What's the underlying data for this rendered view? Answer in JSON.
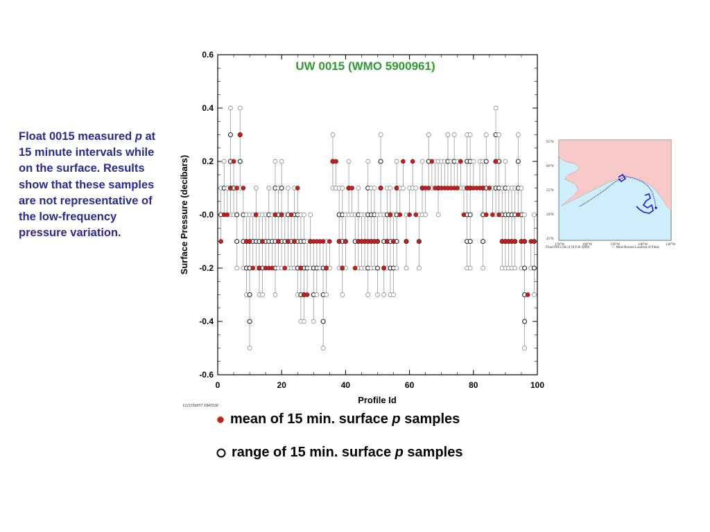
{
  "caption": {
    "line1": "Float 0015 measured ",
    "variable": "p",
    "line2": " at 15 minute intervals while on the surface.  Results show that these samples are not representative of the low-frequency pressure variation."
  },
  "legend": {
    "mean_prefix": "mean of 15 min. surface ",
    "mean_suffix": " samples",
    "range_prefix": "range of 15 min. surface ",
    "range_suffix": " samples",
    "variable": "p",
    "mean_color": "#c0201e",
    "range_color": "#000000"
  },
  "stamp": "1221156057.1845536",
  "map": {
    "lat_labels": [
      "65°N",
      "60°N",
      "55°N",
      "50°N",
      "45°N"
    ],
    "lon_labels": [
      "170°W",
      "160°W",
      "150°W",
      "140°W",
      "130°W"
    ],
    "caption_left": "Float 0015 (As of 18 Feb 2009)",
    "caption_right": "• : Most Recent Location of Float.",
    "land_color": "#f7c9c9",
    "ocean_color": "#cdeefa",
    "track_color": "#1a1ad0"
  },
  "chart_data": {
    "type": "scatter",
    "title": "UW 0015 (WMO 5900961)",
    "xlabel": "Profile Id",
    "ylabel": "Surface Pressure (decibars)",
    "xlim": [
      0,
      100
    ],
    "ylim": [
      -0.6,
      0.6
    ],
    "xticks": [
      0,
      20,
      40,
      60,
      80,
      100
    ],
    "yticks": [
      -0.6,
      -0.4,
      -0.2,
      0.0,
      0.2,
      0.4,
      0.6
    ],
    "ytick_labels": [
      "-0.6",
      "-0.4",
      "-0.2",
      "-0.0",
      "0.2",
      "0.4",
      "0.6"
    ],
    "series": [
      {
        "name": "mean of 15 min. surface p samples",
        "color": "#c0201e",
        "x": [
          1,
          2,
          3,
          4,
          5,
          6,
          7,
          8,
          9,
          10,
          11,
          12,
          13,
          14,
          15,
          16,
          17,
          18,
          19,
          20,
          21,
          22,
          23,
          24,
          25,
          26,
          27,
          28,
          29,
          30,
          31,
          32,
          33,
          34,
          35,
          36,
          37,
          38,
          39,
          40,
          41,
          42,
          43,
          44,
          45,
          46,
          47,
          48,
          49,
          50,
          51,
          52,
          53,
          54,
          55,
          56,
          57,
          58,
          59,
          60,
          61,
          62,
          63,
          64,
          65,
          66,
          67,
          68,
          69,
          70,
          71,
          72,
          73,
          74,
          75,
          76,
          77,
          78,
          79,
          80,
          81,
          82,
          83,
          84,
          85,
          86,
          87,
          88,
          89,
          90,
          91,
          92,
          93,
          94,
          95,
          96,
          97,
          98,
          99
        ],
        "y": [
          -0.1,
          0.0,
          0.0,
          0.1,
          0.2,
          0.1,
          0.3,
          0.1,
          -0.1,
          -0.1,
          -0.2,
          0.0,
          -0.2,
          -0.1,
          -0.2,
          -0.2,
          -0.2,
          0.0,
          -0.1,
          0.0,
          -0.2,
          -0.1,
          0.0,
          -0.1,
          0.1,
          -0.2,
          -0.3,
          -0.3,
          -0.1,
          -0.1,
          -0.1,
          -0.1,
          -0.1,
          -0.2,
          -0.1,
          0.2,
          0.2,
          -0.1,
          -0.2,
          -0.1,
          0.1,
          0.1,
          -0.2,
          -0.1,
          -0.1,
          -0.1,
          -0.1,
          -0.1,
          -0.1,
          -0.1,
          0.1,
          -0.2,
          -0.1,
          0.0,
          -0.1,
          0.1,
          0.0,
          0.2,
          -0.1,
          0.0,
          0.2,
          0.0,
          -0.1,
          0.1,
          0.1,
          0.1,
          0.2,
          0.1,
          0.1,
          0.1,
          0.1,
          0.1,
          0.1,
          0.1,
          0.1,
          0.2,
          0.0,
          0.1,
          0.1,
          0.1,
          0.1,
          0.1,
          0.1,
          0.0,
          0.1,
          0.0,
          0.2,
          0.0,
          -0.1,
          -0.1,
          -0.1,
          -0.1,
          -0.1,
          0.0,
          -0.1,
          -0.1,
          -0.3,
          -0.1,
          -0.1
        ]
      },
      {
        "name": "range of 15 min. surface p samples",
        "color": "#000000",
        "x": [
          1,
          2,
          3,
          4,
          5,
          6,
          7,
          8,
          9,
          10,
          11,
          12,
          13,
          14,
          15,
          16,
          17,
          18,
          19,
          20,
          21,
          22,
          23,
          24,
          25,
          26,
          27,
          28,
          29,
          30,
          31,
          32,
          33,
          34,
          35,
          36,
          37,
          38,
          39,
          40,
          41,
          42,
          43,
          44,
          45,
          46,
          47,
          48,
          49,
          50,
          51,
          52,
          53,
          54,
          55,
          56,
          57,
          58,
          59,
          60,
          61,
          62,
          63,
          64,
          65,
          66,
          67,
          68,
          69,
          70,
          71,
          72,
          73,
          74,
          75,
          76,
          77,
          78,
          79,
          80,
          81,
          82,
          83,
          84,
          85,
          86,
          87,
          88,
          89,
          90,
          91,
          92,
          93,
          94,
          95,
          96,
          97,
          98,
          99
        ],
        "low": [
          -0.1,
          0.0,
          0.0,
          0.0,
          0.0,
          -0.2,
          0.1,
          -0.2,
          -0.3,
          -0.5,
          -0.2,
          -0.2,
          -0.3,
          -0.3,
          -0.2,
          -0.2,
          -0.2,
          -0.3,
          -0.2,
          -0.2,
          -0.2,
          -0.2,
          -0.2,
          -0.2,
          -0.3,
          -0.4,
          -0.4,
          -0.3,
          -0.2,
          -0.4,
          -0.3,
          -0.2,
          -0.5,
          -0.3,
          -0.2,
          0.1,
          0.1,
          -0.2,
          -0.3,
          -0.2,
          0.0,
          0.0,
          -0.2,
          -0.2,
          -0.2,
          -0.2,
          -0.3,
          -0.2,
          -0.2,
          -0.3,
          0.0,
          -0.3,
          -0.2,
          -0.3,
          -0.3,
          -0.2,
          0.0,
          0.1,
          -0.2,
          0.0,
          0.1,
          0.0,
          -0.2,
          0.0,
          0.0,
          0.1,
          0.1,
          0.1,
          0.0,
          0.1,
          0.1,
          0.1,
          0.1,
          0.1,
          0.1,
          0.1,
          0.0,
          -0.2,
          -0.2,
          0.1,
          0.1,
          0.1,
          -0.2,
          0.0,
          0.1,
          0.0,
          0.0,
          0.0,
          -0.2,
          -0.2,
          -0.2,
          -0.2,
          -0.2,
          0.0,
          -0.2,
          -0.5,
          -0.3,
          -0.2,
          -0.3
        ],
        "high": [
          0.1,
          0.2,
          0.1,
          0.4,
          0.2,
          0.1,
          0.4,
          0.1,
          0.0,
          0.0,
          0.0,
          0.1,
          0.0,
          0.0,
          0.0,
          0.1,
          0.0,
          0.2,
          0.1,
          0.2,
          0.0,
          0.1,
          0.0,
          0.1,
          0.1,
          0.0,
          0.0,
          -0.1,
          0.0,
          -0.1,
          -0.1,
          -0.1,
          -0.1,
          -0.1,
          -0.1,
          0.3,
          0.2,
          0.1,
          0.1,
          0.0,
          0.2,
          0.1,
          0.0,
          0.1,
          0.0,
          0.0,
          0.2,
          0.1,
          0.1,
          0.0,
          0.3,
          0.0,
          0.1,
          0.1,
          0.0,
          0.2,
          0.1,
          0.2,
          0.0,
          0.1,
          0.2,
          0.1,
          0.0,
          0.2,
          0.1,
          0.3,
          0.2,
          0.2,
          0.2,
          0.2,
          0.2,
          0.3,
          0.2,
          0.3,
          0.2,
          0.2,
          0.1,
          0.3,
          0.3,
          0.2,
          0.1,
          0.2,
          0.2,
          0.3,
          0.1,
          0.1,
          0.4,
          0.3,
          0.1,
          0.2,
          0.1,
          0.1,
          0.1,
          0.3,
          0.1,
          0.0,
          -0.3,
          -0.1,
          0.0
        ]
      }
    ],
    "grid": false,
    "legend": "below"
  }
}
